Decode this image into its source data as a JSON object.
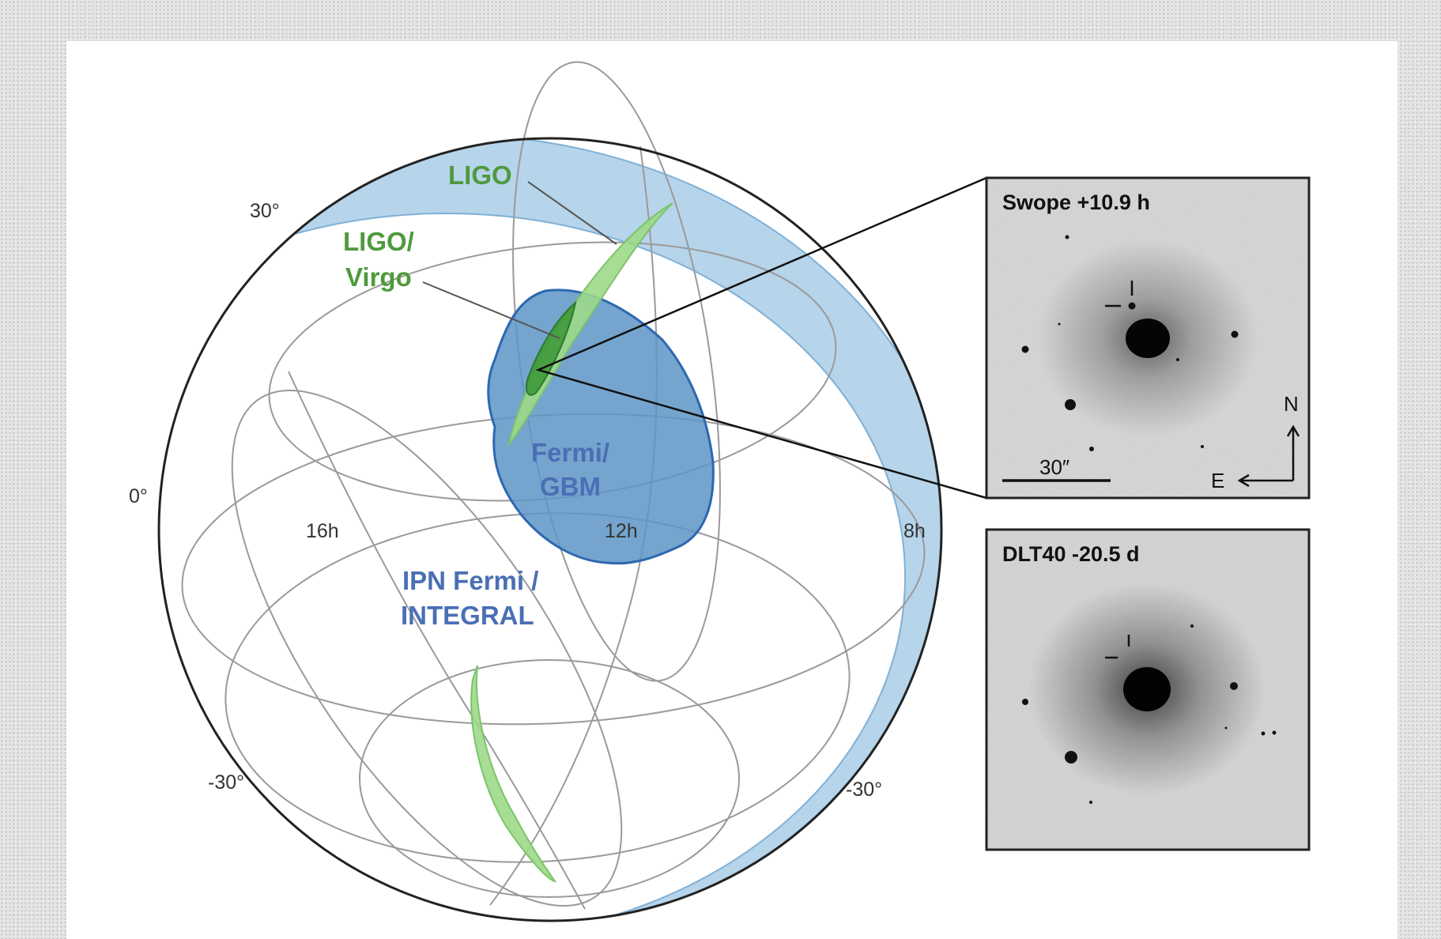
{
  "sky_map": {
    "dec_labels": [
      "30°",
      "0°",
      "-30°",
      "-30°"
    ],
    "ra_labels": [
      "16h",
      "12h",
      "8h"
    ],
    "regions": {
      "ligo": "LIGO",
      "ligo_virgo_line1": "LIGO/",
      "ligo_virgo_line2": "Virgo",
      "fermi_line1": "Fermi/",
      "fermi_line2": "GBM",
      "ipn_line1": "IPN Fermi /",
      "ipn_line2": "INTEGRAL"
    },
    "colors": {
      "ligo_light": "#9dd98a",
      "ligo_dark": "#3f9a3a",
      "fermi_gbm": "#5d95c6",
      "ipn": "#a9cde6"
    }
  },
  "insets": {
    "swope": {
      "title": "Swope +10.9 h",
      "scale_label": "30″",
      "north": "N",
      "east": "E"
    },
    "dlt40": {
      "title": "DLT40 -20.5 d"
    }
  }
}
